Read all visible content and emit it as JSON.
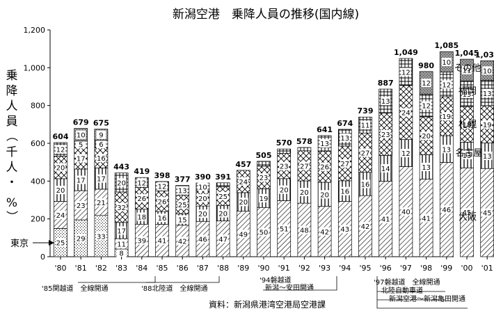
{
  "chart_data": {
    "type": "bar",
    "stacked": true,
    "title": "新潟空港　乗降人員の推移(国内線)",
    "ylabel": "乗降人員（千人・%）",
    "ylim": [
      0,
      1200
    ],
    "yticks": [
      "0",
      "200",
      "400",
      "600",
      "800",
      "1,000",
      "1,200"
    ],
    "categories": [
      "'80",
      "'81",
      "'82",
      "'83",
      "'84",
      "'85",
      "'86",
      "'87",
      "'88",
      "'89",
      "'90",
      "'91",
      "'92",
      "'93",
      "'94",
      "'95",
      "'96",
      "'97",
      "'98",
      "'99",
      "'00",
      "'01"
    ],
    "totals": [
      604,
      679,
      675,
      443,
      419,
      398,
      377,
      390,
      391,
      457,
      505,
      570,
      578,
      641,
      674,
      739,
      887,
      1049,
      980,
      1085,
      1045,
      1037
    ],
    "total_labels": [
      "604",
      "679",
      "675",
      "443",
      "419",
      "398",
      "377",
      "390",
      "391",
      "457",
      "505",
      "570",
      "578",
      "641",
      "674",
      "739",
      "887",
      "1,049",
      "980",
      "1,085",
      "1,045",
      "1,037"
    ],
    "series": [
      {
        "name": "東京",
        "pct": [
          25,
          29,
          33,
          8,
          null,
          null,
          null,
          null,
          null,
          null,
          null,
          null,
          null,
          null,
          null,
          null,
          null,
          null,
          null,
          null,
          null,
          null
        ]
      },
      {
        "name": "大阪",
        "pct": [
          24,
          23,
          21,
          11,
          39,
          41,
          42,
          46,
          47,
          49,
          50,
          51,
          48,
          42,
          43,
          42,
          41,
          40,
          41,
          46,
          45,
          45
        ]
      },
      {
        "name": "名古屋",
        "pct": [
          20,
          17,
          17,
          17,
          18,
          16,
          15,
          20,
          20,
          20,
          19,
          20,
          20,
          20,
          16,
          16,
          14,
          12,
          13,
          13,
          13,
          13
        ]
      },
      {
        "name": "札幌",
        "pct": [
          20,
          17,
          16,
          32,
          26,
          26,
          25,
          20,
          25,
          24,
          23,
          23,
          27,
          26,
          27,
          27,
          23,
          24,
          20,
          19,
          18,
          19
        ]
      },
      {
        "name": "福岡",
        "pct": [
          12,
          5,
          6,
          20,
          12,
          12,
          13,
          10,
          5,
          null,
          5,
          4,
          3,
          13,
          13,
          11,
          13,
          12,
          12,
          12,
          13,
          13
        ]
      },
      {
        "name": "その他",
        "pct": [
          null,
          10,
          9,
          null,
          null,
          null,
          null,
          null,
          null,
          null,
          null,
          null,
          null,
          null,
          null,
          null,
          null,
          null,
          12,
          10,
          11,
          10
        ]
      }
    ],
    "series_labels": [
      "その他",
      "福岡",
      "札幌",
      "名古屋",
      "大阪"
    ],
    "tokyo_label": "東京",
    "annotations": [
      {
        "text": "'85関越道　全線開通",
        "year": "'85"
      },
      {
        "text": "'88北陸道　全線開通",
        "year": "'88"
      },
      {
        "text": "'94磐越道",
        "year": "'94"
      },
      {
        "text": "新潟～安田開通",
        "year": "'94"
      },
      {
        "text": "'97磐越道　全線開通",
        "year": "'97"
      },
      {
        "text": "北陸自動車道",
        "year": "'97"
      },
      {
        "text": "新潟空港～新潟亀田開通",
        "year": "'97"
      }
    ],
    "source": "資料：新潟県港湾空港局空港課"
  }
}
